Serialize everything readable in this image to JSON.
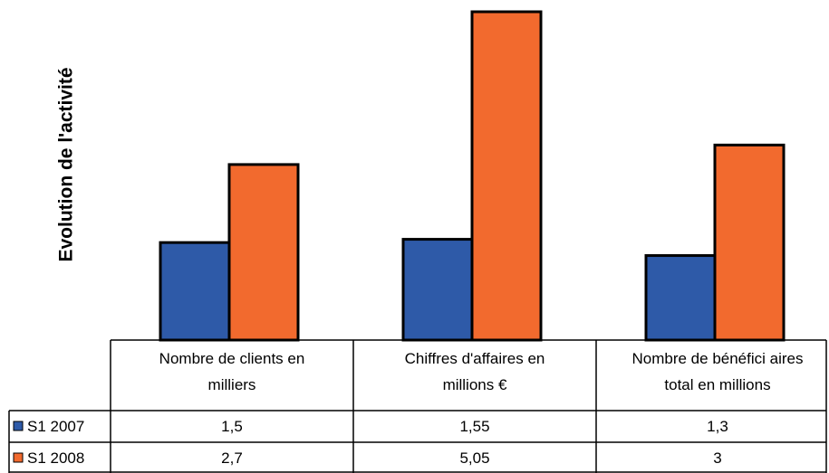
{
  "chart_data": {
    "type": "bar",
    "ylabel": "Evolution de l'activité",
    "categories": [
      [
        "Nombre de clients en",
        "milliers"
      ],
      [
        "Chiffres d'affaires en",
        "millions €"
      ],
      [
        "Nombre de bénéfici aires",
        "total en millions"
      ]
    ],
    "series": [
      {
        "name": "S1 2007",
        "color": "#2e5aa8",
        "values": [
          1.5,
          1.55,
          1.3
        ],
        "labels": [
          "1,5",
          "1,55",
          "1,3"
        ]
      },
      {
        "name": "S1 2008",
        "color": "#f26a2e",
        "values": [
          2.7,
          5.05,
          3
        ],
        "labels": [
          "2,7",
          "5,05",
          "3"
        ]
      }
    ],
    "ylim": [
      0,
      5.05
    ],
    "legend": "table-left",
    "grid": false
  }
}
